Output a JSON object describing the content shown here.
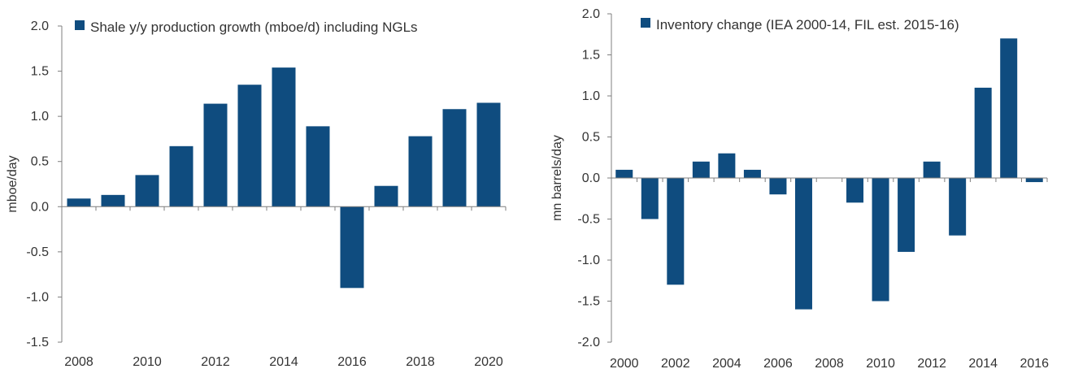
{
  "colors": {
    "bar": "#0f4c7f",
    "axis": "#7f7f7f",
    "text": "#333333"
  },
  "chart_data": [
    {
      "type": "bar",
      "title": "",
      "legend": "Shale y/y production growth (mboe/d) including NGLs",
      "legend_position": "top-left",
      "xlabel": "",
      "ylabel": "mboe/day",
      "ylim": [
        -1.5,
        2.0
      ],
      "yticks": [
        2.0,
        1.5,
        1.0,
        0.5,
        0.0,
        -0.5,
        -1.0,
        -1.5
      ],
      "ytick_labels": [
        "2.0",
        "1.5",
        "1.0",
        "0.5",
        "0.0",
        "-0.5",
        "-1.0",
        "-1.5"
      ],
      "categories": [
        2008,
        2009,
        2010,
        2011,
        2012,
        2013,
        2014,
        2015,
        2016,
        2017,
        2018,
        2019,
        2020
      ],
      "xtick_labels": [
        "2008",
        "2010",
        "2012",
        "2014",
        "2016",
        "2018",
        "2020"
      ],
      "values": [
        0.09,
        0.13,
        0.35,
        0.67,
        1.14,
        1.35,
        1.54,
        0.89,
        -0.9,
        0.23,
        0.78,
        1.08,
        1.15
      ],
      "grid": false
    },
    {
      "type": "bar",
      "title": "",
      "legend": "Inventory change (IEA 2000-14, FIL est. 2015-16)",
      "legend_position": "top-left",
      "xlabel": "",
      "ylabel": "mn barrels/day",
      "ylim": [
        -2.0,
        2.0
      ],
      "yticks": [
        2.0,
        1.5,
        1.0,
        0.5,
        0.0,
        -0.5,
        -1.0,
        -1.5,
        -2.0
      ],
      "ytick_labels": [
        "2.0",
        "1.5",
        "1.0",
        "0.5",
        "0.0",
        "-0.5",
        "-1.0",
        "-1.5",
        "-2.0"
      ],
      "categories": [
        2000,
        2001,
        2002,
        2003,
        2004,
        2005,
        2006,
        2007,
        2008,
        2009,
        2010,
        2011,
        2012,
        2013,
        2014,
        2015,
        2016
      ],
      "xtick_labels": [
        "2000",
        "2002",
        "2004",
        "2006",
        "2008",
        "2010",
        "2012",
        "2014",
        "2016"
      ],
      "values": [
        0.1,
        -0.5,
        -1.3,
        0.2,
        0.3,
        0.1,
        -0.2,
        -1.6,
        0.0,
        -0.3,
        -1.5,
        -0.9,
        0.2,
        -0.7,
        1.1,
        1.7,
        -0.05
      ],
      "grid": false
    }
  ]
}
